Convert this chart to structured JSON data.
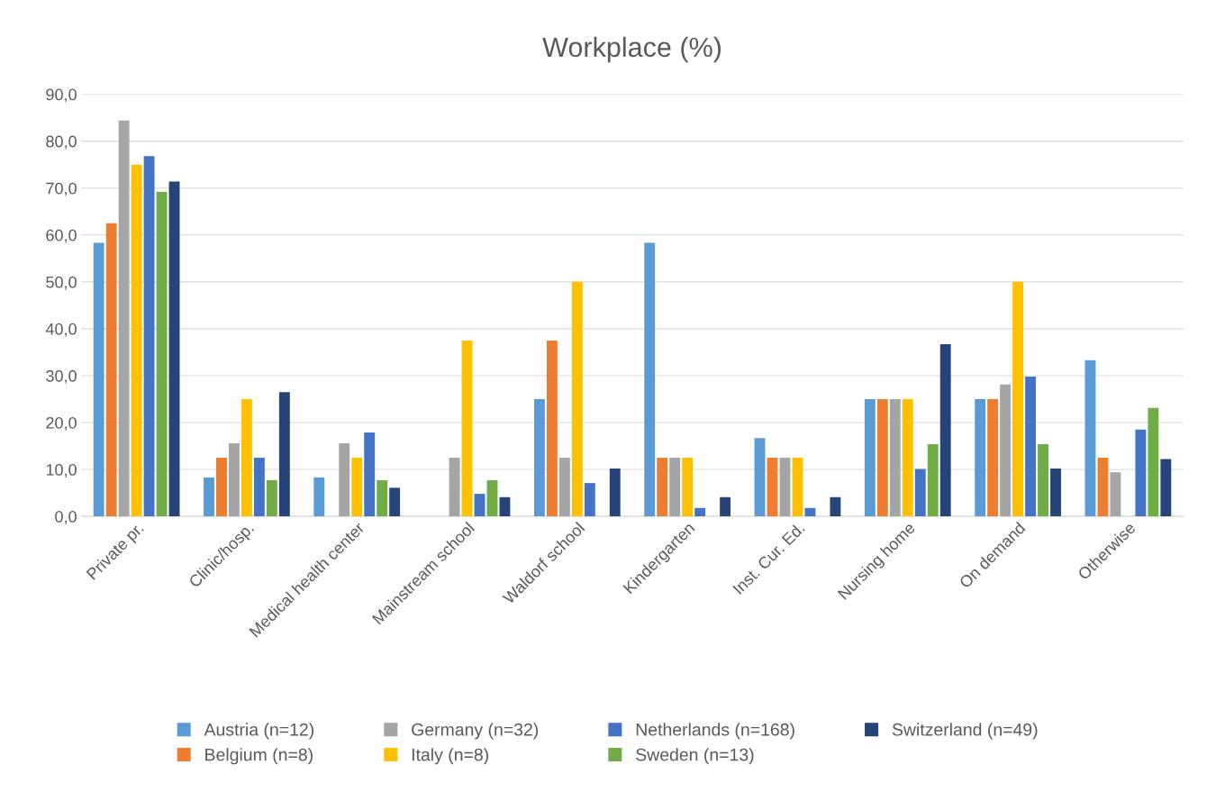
{
  "chart_data": {
    "type": "bar",
    "title": "Workplace (%)",
    "categories": [
      "Private pr.",
      "Clinic/hosp.",
      "Medical health center",
      "Mainstream school",
      "Waldorf school",
      "Kindergarten",
      "Inst. Cur. Ed.",
      "Nursing home",
      "On demand",
      "Otherwise"
    ],
    "series": [
      {
        "name": "Austria (n=12)",
        "color": "#5b9bd5",
        "values": [
          58.3,
          8.3,
          8.3,
          0,
          25,
          58.3,
          16.7,
          25,
          25,
          33.3
        ]
      },
      {
        "name": "Belgium (n=8)",
        "color": "#ed7d31",
        "values": [
          62.5,
          12.5,
          0,
          0,
          37.5,
          12.5,
          12.5,
          25,
          25,
          12.5
        ]
      },
      {
        "name": "Germany (n=32)",
        "color": "#a5a5a5",
        "values": [
          84.4,
          15.6,
          15.6,
          12.5,
          12.5,
          12.5,
          12.5,
          25,
          28.1,
          9.4
        ]
      },
      {
        "name": "Italy (n=8)",
        "color": "#ffc000",
        "values": [
          75,
          25,
          12.5,
          37.5,
          50,
          12.5,
          12.5,
          25,
          50,
          0
        ]
      },
      {
        "name": "Netherlands (n=168)",
        "color": "#4472c4",
        "values": [
          76.8,
          12.5,
          17.9,
          4.8,
          7.1,
          1.8,
          1.8,
          10.1,
          29.8,
          18.5
        ]
      },
      {
        "name": "Sweden (n=13)",
        "color": "#70ad47",
        "values": [
          69.2,
          7.7,
          7.7,
          7.7,
          0,
          0,
          0,
          15.4,
          15.4,
          23.1
        ]
      },
      {
        "name": "Switzerland (n=49)",
        "color": "#264478",
        "values": [
          71.4,
          26.5,
          6.1,
          4.1,
          10.2,
          4.1,
          4.1,
          36.7,
          10.2,
          12.2
        ]
      }
    ],
    "ylim": [
      0,
      90
    ],
    "yticks": [
      {
        "value": 0,
        "label": "0,0"
      },
      {
        "value": 10,
        "label": "10,0"
      },
      {
        "value": 20,
        "label": "20,0"
      },
      {
        "value": 30,
        "label": "30,0"
      },
      {
        "value": 40,
        "label": "40,0"
      },
      {
        "value": 50,
        "label": "50,0"
      },
      {
        "value": 60,
        "label": "60,0"
      },
      {
        "value": 70,
        "label": "70,0"
      },
      {
        "value": 80,
        "label": "80,0"
      },
      {
        "value": 90,
        "label": "90,0"
      }
    ],
    "grid": "y",
    "legend": "bottom"
  }
}
